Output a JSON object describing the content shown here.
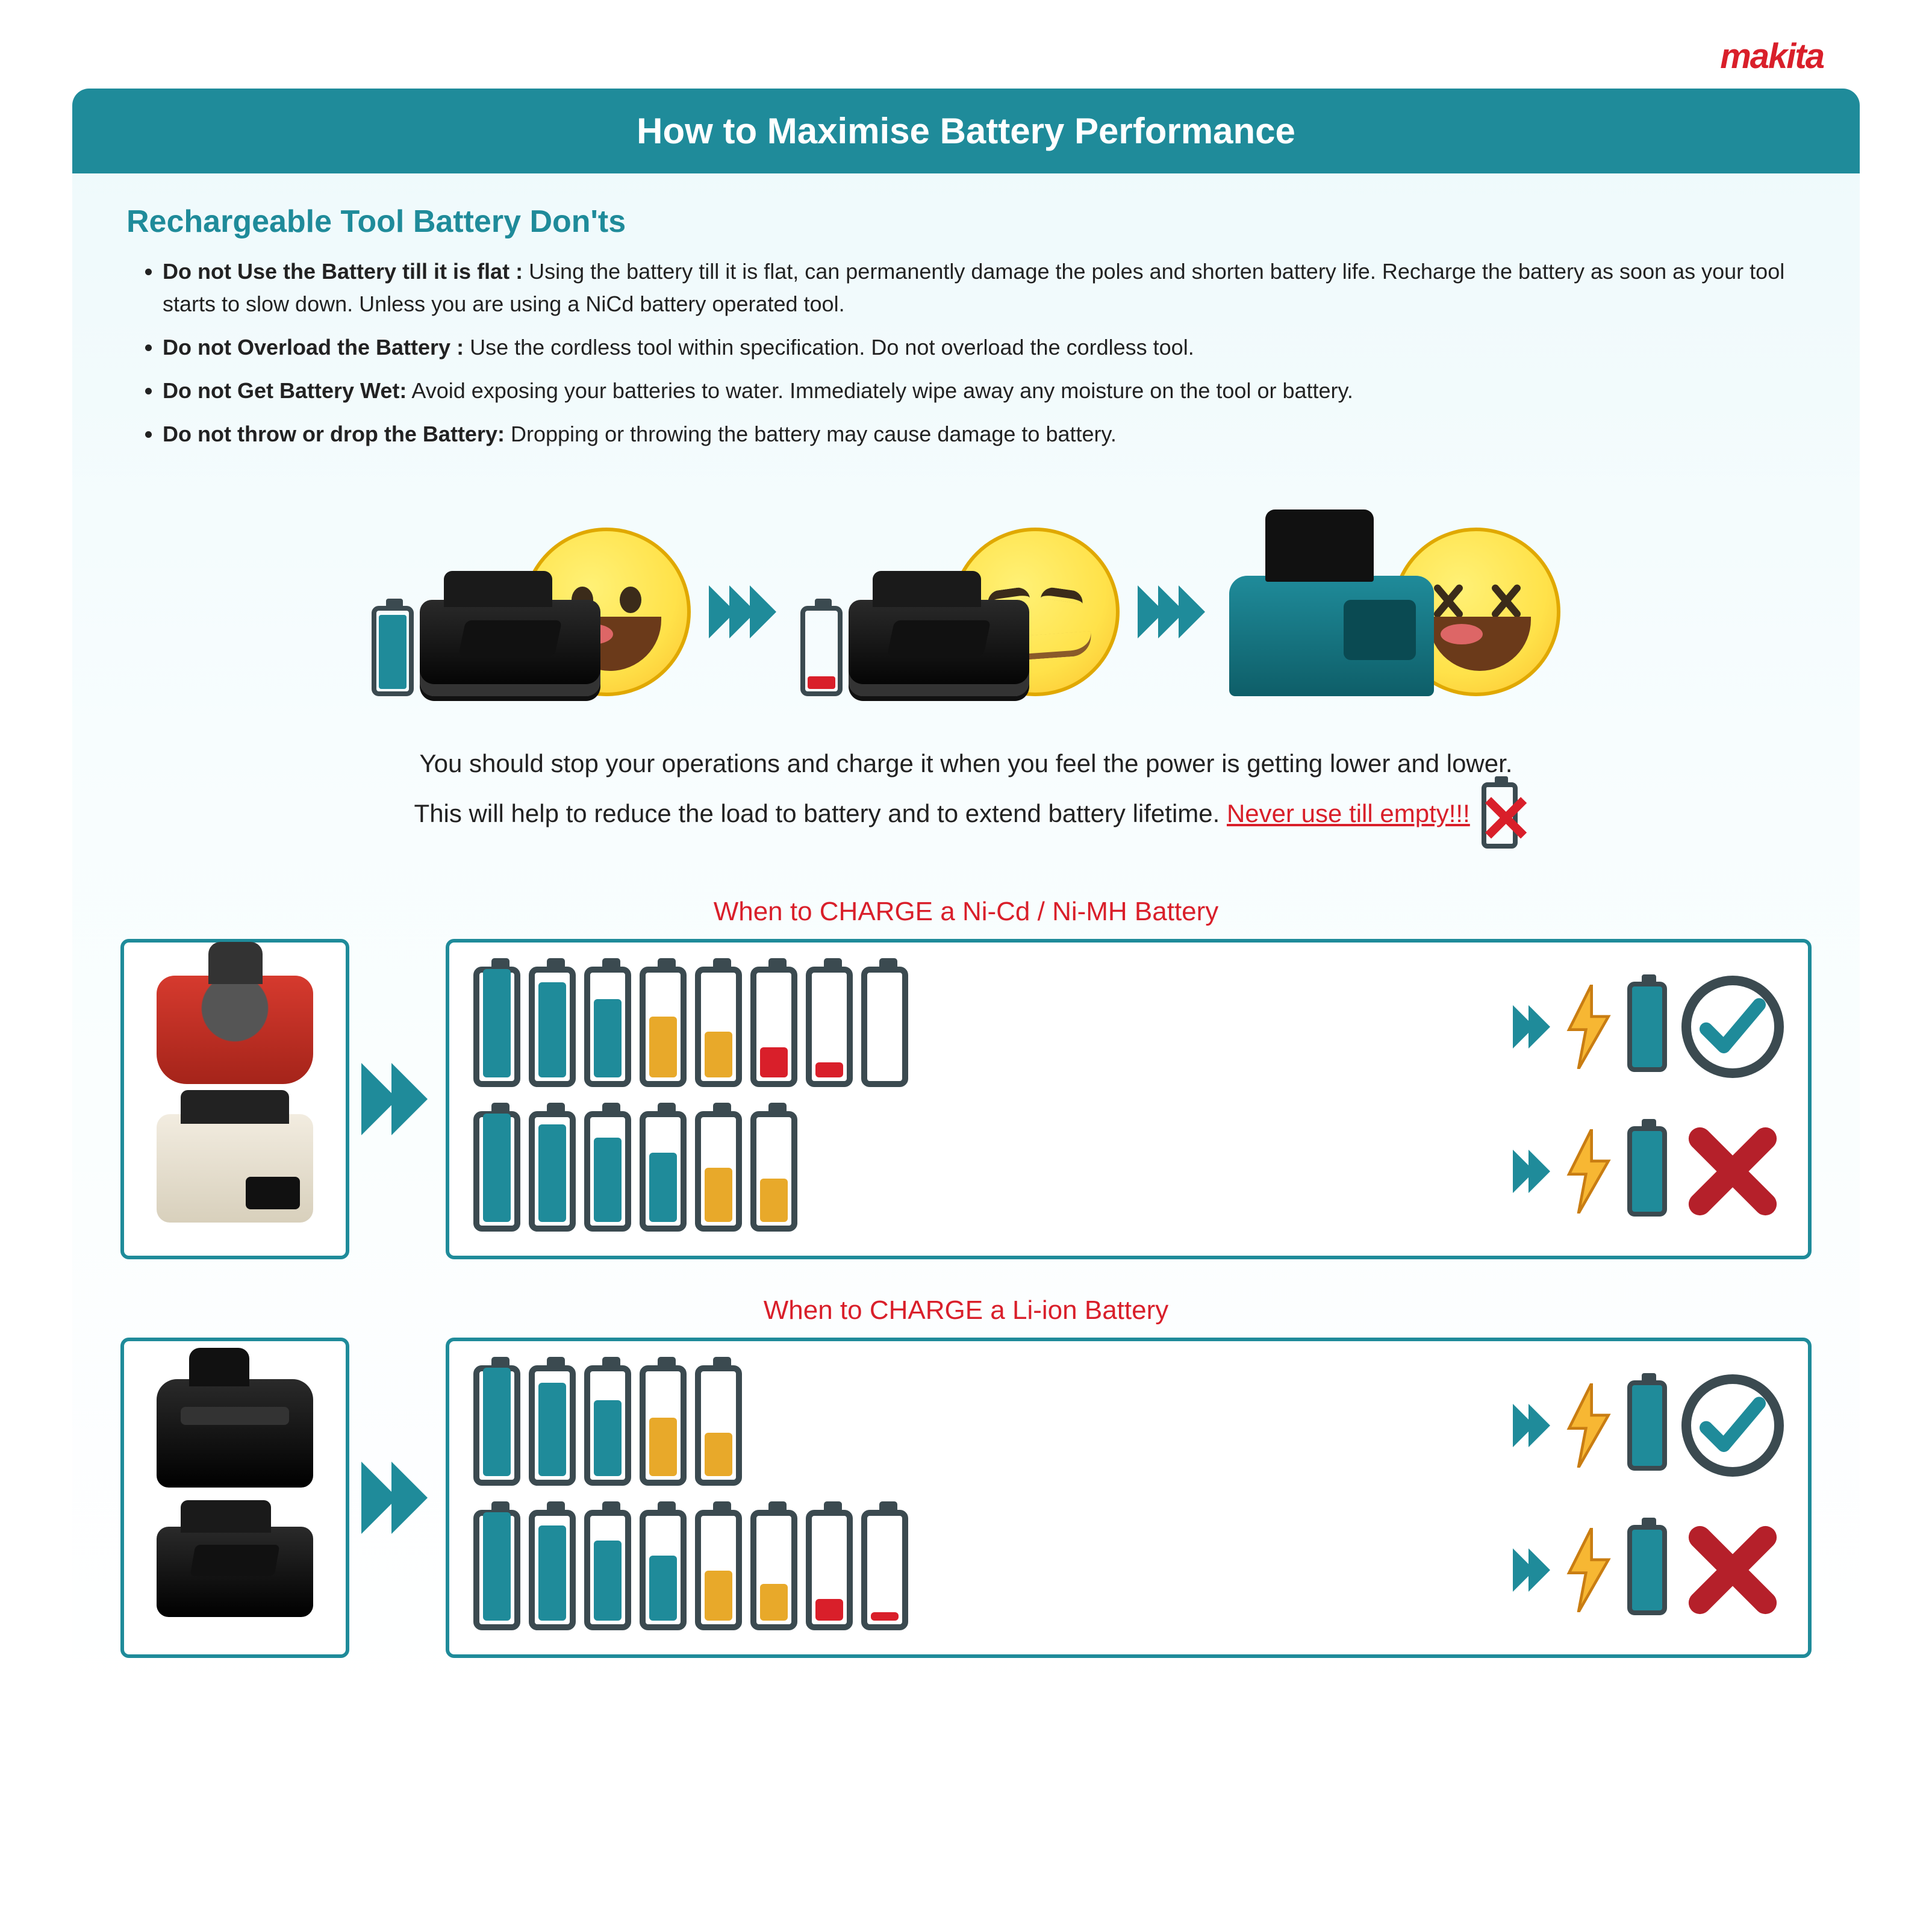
{
  "brand": "makita",
  "title": "How to Maximise Battery Performance",
  "donts_heading": "Rechargeable Tool Battery Don'ts",
  "donts": [
    {
      "bold": "Do not Use the Battery till it is flat :",
      "text": " Using the battery till it is flat, can permanently damage the poles and shorten battery life. Recharge the battery as soon as your tool starts to slow down. Unless you are using a NiCd battery operated tool."
    },
    {
      "bold": "Do not Overload the Battery :",
      "text": " Use the cordless tool within specification. Do not overload the cordless tool."
    },
    {
      "bold": "Do not Get Battery Wet:",
      "text": " Avoid exposing your batteries to water. Immediately wipe away any moisture on the tool or battery."
    },
    {
      "bold": "Do not throw or drop the Battery:",
      "text": " Dropping or throwing the battery may cause damage to battery."
    }
  ],
  "flow_levels": {
    "full_color": "#1f8b9a",
    "low_color": "#d91f2a"
  },
  "advisory_line1": "You should stop your operations and charge it when you feel the power is getting lower and lower.",
  "advisory_line2_a": "This will help to reduce the load to battery and to extend battery lifetime. ",
  "advisory_warn": "Never use till empty!!!",
  "nicd_title": "When to CHARGE a Ni-Cd / Ni-MH Battery",
  "liion_title": "When to CHARGE a Li-ion Battery",
  "colors": {
    "teal": "#1f8b9a",
    "amber": "#e8a92a",
    "red": "#d91f2a",
    "outline": "#3b4a50",
    "bolt_fill": "#f7b733",
    "bolt_stroke": "#c97d12",
    "check": "#1f8b9a",
    "cross": "#b5202a"
  },
  "nicd_rows": [
    {
      "cells": [
        {
          "h": 100,
          "c": "#1f8b9a"
        },
        {
          "h": 88,
          "c": "#1f8b9a"
        },
        {
          "h": 72,
          "c": "#1f8b9a"
        },
        {
          "h": 56,
          "c": "#e8a92a"
        },
        {
          "h": 42,
          "c": "#e8a92a"
        },
        {
          "h": 28,
          "c": "#d91f2a"
        },
        {
          "h": 14,
          "c": "#d91f2a"
        },
        {
          "h": 0,
          "c": "#ffffff"
        }
      ],
      "verdict": "ok"
    },
    {
      "cells": [
        {
          "h": 100,
          "c": "#1f8b9a"
        },
        {
          "h": 90,
          "c": "#1f8b9a"
        },
        {
          "h": 78,
          "c": "#1f8b9a"
        },
        {
          "h": 64,
          "c": "#1f8b9a"
        },
        {
          "h": 50,
          "c": "#e8a92a"
        },
        {
          "h": 40,
          "c": "#e8a92a"
        }
      ],
      "verdict": "bad"
    }
  ],
  "liion_rows": [
    {
      "cells": [
        {
          "h": 100,
          "c": "#1f8b9a"
        },
        {
          "h": 86,
          "c": "#1f8b9a"
        },
        {
          "h": 70,
          "c": "#1f8b9a"
        },
        {
          "h": 54,
          "c": "#e8a92a"
        },
        {
          "h": 40,
          "c": "#e8a92a"
        }
      ],
      "verdict": "ok"
    },
    {
      "cells": [
        {
          "h": 100,
          "c": "#1f8b9a"
        },
        {
          "h": 88,
          "c": "#1f8b9a"
        },
        {
          "h": 74,
          "c": "#1f8b9a"
        },
        {
          "h": 60,
          "c": "#1f8b9a"
        },
        {
          "h": 46,
          "c": "#e8a92a"
        },
        {
          "h": 34,
          "c": "#e8a92a"
        },
        {
          "h": 20,
          "c": "#d91f2a"
        },
        {
          "h": 8,
          "c": "#d91f2a"
        }
      ],
      "verdict": "bad"
    }
  ]
}
